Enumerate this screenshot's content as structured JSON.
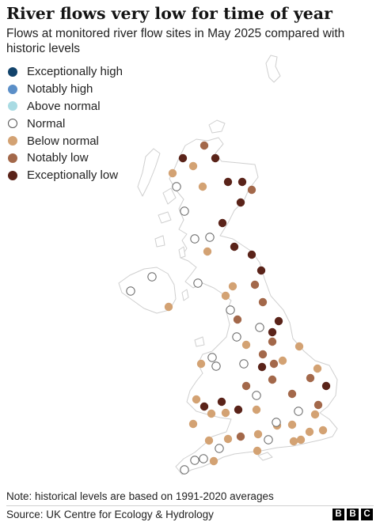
{
  "header": {
    "title": "River flows very low for time of year",
    "subtitle": "Flows at monitored river flow sites in May 2025 compared with historic levels"
  },
  "legend": {
    "items": [
      {
        "label": "Exceptionally high",
        "color": "#12436b"
      },
      {
        "label": "Notably high",
        "color": "#5b8fc8"
      },
      {
        "label": "Above normal",
        "color": "#a9dbe3"
      },
      {
        "label": "Normal",
        "color": "#ffffff"
      },
      {
        "label": "Below normal",
        "color": "#d3a273"
      },
      {
        "label": "Notably low",
        "color": "#a3684a"
      },
      {
        "label": "Exceptionally low",
        "color": "#5a2319"
      }
    ]
  },
  "map": {
    "land_color": "#ffffff",
    "sea_color": "#ffffff",
    "outline_color": "#cfcfcf",
    "category_colors": {
      "normal": "#ffffff",
      "below": "#d3a273",
      "notably_low": "#a3684a",
      "exceptionally_low": "#5a2319"
    },
    "category_counts": {
      "normal": 22,
      "below": 27,
      "notably_low": 19,
      "exceptionally_low": 19
    }
  },
  "footer": {
    "note": "Note: historical levels are based on 1991-2020 averages",
    "source": "Source: UK Centre for Ecology & Hydrology",
    "brand": [
      "B",
      "B",
      "C"
    ]
  }
}
